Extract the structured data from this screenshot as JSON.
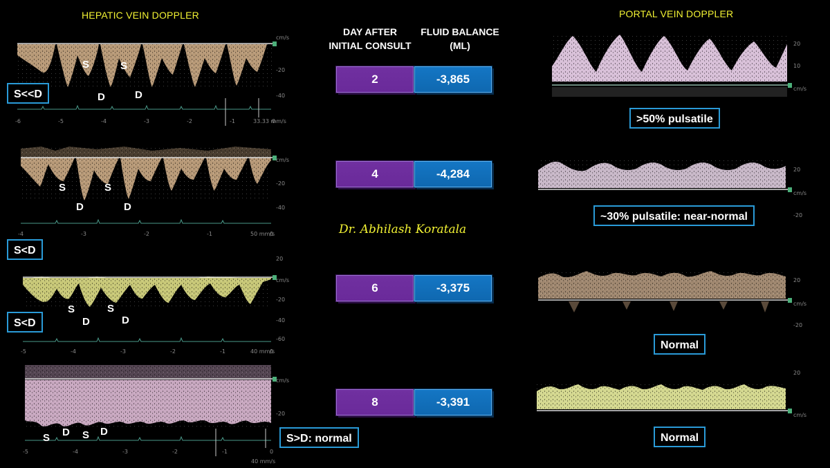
{
  "hepatic": {
    "title": "HEPATIC VEIN DOPPLER",
    "panels": [
      {
        "label": "S<<D",
        "letters": [
          "S",
          "S",
          "D",
          "D"
        ]
      },
      {
        "label": "S<D",
        "letters": [
          "S",
          "S",
          "D",
          "D"
        ]
      },
      {
        "label": "S<D",
        "letters": [
          "S",
          "S",
          "D",
          "D"
        ]
      },
      {
        "label": "S>D: normal",
        "letters": [
          "S",
          "D",
          "S",
          "D"
        ]
      }
    ],
    "axis": {
      "unit": "cm/s",
      "ticks_1": [
        "-20",
        "-40"
      ],
      "ticks_2": [
        "-20",
        "-40"
      ],
      "ticks_3": [
        "20",
        "-20",
        "-40",
        "-60"
      ],
      "ticks_4": [
        "-20"
      ],
      "x_ticks_1": [
        "-6",
        "-5",
        "-4",
        "-3",
        "-2",
        "-1",
        "0"
      ],
      "x_ticks_2": [
        "-4",
        "-3",
        "-2",
        "-1",
        "0"
      ],
      "x_ticks_3": [
        "-5",
        "-4",
        "-3",
        "-2",
        "-1",
        "0"
      ],
      "x_ticks_4": [
        "-5",
        "-4",
        "-3",
        "-2",
        "-1",
        "0"
      ],
      "speed_1": "33.33 mm/s",
      "speed_2": "50 mm/s",
      "speed_3": "40 mm/s",
      "speed_4": "40 mm/s"
    }
  },
  "portal": {
    "title": "PORTAL VEIN DOPPLER",
    "panels": [
      {
        "label": ">50% pulsatile"
      },
      {
        "label": "~30% pulsatile: near-normal"
      },
      {
        "label": "Normal"
      },
      {
        "label": "Normal"
      }
    ],
    "axis": {
      "unit": "cm/s",
      "ticks_1": [
        "20",
        "10"
      ],
      "ticks_2": [
        "20",
        "-20"
      ],
      "ticks_3": [
        "20",
        "-20"
      ],
      "ticks_4": [
        "20"
      ]
    }
  },
  "table": {
    "header_day": [
      "DAY AFTER",
      "INITIAL CONSULT"
    ],
    "header_fluid": [
      "FLUID BALANCE",
      "(ML)"
    ],
    "rows": [
      {
        "day": "2",
        "fluid": "-3,865"
      },
      {
        "day": "4",
        "fluid": "-4,284"
      },
      {
        "day": "6",
        "fluid": "-3,375"
      },
      {
        "day": "8",
        "fluid": "-3,391"
      }
    ]
  },
  "signature": "Dr. Abhilash Koratala",
  "colors": {
    "title": "#f2f233",
    "box_border": "#2a9bd8",
    "day_fill": "#7030a0",
    "fluid_fill": "#1476c4",
    "hepatic_wave_1": "#b89a78",
    "hepatic_wave_2": "#b89a78",
    "hepatic_wave_3": "#c8c878",
    "hepatic_wave_4": "#c8a8c0",
    "portal_wave_1": "#d8c0d8",
    "portal_wave_2": "#c8b8c8",
    "portal_wave_3": "#a08870",
    "portal_wave_4": "#d4d890"
  }
}
